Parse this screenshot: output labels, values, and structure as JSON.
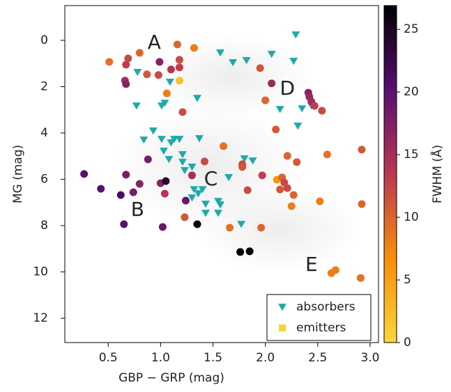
{
  "chart_data": {
    "type": "scatter",
    "xlabel": "GBP − GRP (mag)",
    "ylabel": "MG (mag)",
    "xlim": [
      0.086,
      3.08
    ],
    "ylim": [
      13.05,
      -1.5
    ],
    "xticks": [
      0.5,
      {
        "value": 1,
        "label": "1.0"
      },
      1.5,
      {
        "value": 2,
        "label": "2.0"
      },
      2.5,
      {
        "value": 3,
        "label": "3.0"
      }
    ],
    "yticks": [
      0,
      2,
      4,
      6,
      8,
      10,
      12
    ],
    "legend": "lower right",
    "colormap": "inferno_r",
    "colorbar": {
      "label": "FWHM (Å)",
      "clim": [
        0,
        26.9
      ],
      "ticks": [
        0,
        5,
        10,
        15,
        20,
        25
      ]
    },
    "annotations": [
      {
        "text": "A",
        "x": 0.94,
        "y": 0.12
      },
      {
        "text": "B",
        "x": 0.78,
        "y": 7.34
      },
      {
        "text": "C",
        "x": 1.48,
        "y": 6.02
      },
      {
        "text": "D",
        "x": 2.21,
        "y": 2.11
      },
      {
        "text": "E",
        "x": 2.44,
        "y": 9.71
      }
    ],
    "series": [
      {
        "name": "absorbers",
        "color": "#1fa9a9",
        "marker": "triangle",
        "x": [
          2.29,
          1.57,
          1.69,
          1.82,
          2.06,
          2.27,
          0.78,
          1.09,
          1.35,
          0.77,
          1.01,
          1.04,
          2.14,
          2.35,
          2.44,
          2.31,
          0.93,
          0.84,
          1.01,
          1.1,
          1.13,
          1.18,
          1.37,
          1.03,
          1.08,
          1.21,
          1.21,
          1.23,
          1.3,
          1.8,
          1.88,
          1.65,
          1.32,
          1.36,
          1.4,
          1.3,
          1.43,
          1.55,
          1.57,
          1.43,
          1.55,
          1.77
        ],
        "y": [
          -0.24,
          0.54,
          0.96,
          0.87,
          0.6,
          0.9,
          1.38,
          1.8,
          2.5,
          2.83,
          2.83,
          2.71,
          2.98,
          2.95,
          2.83,
          3.7,
          3.91,
          4.3,
          4.27,
          4.42,
          4.27,
          4.27,
          4.24,
          4.78,
          5.14,
          4.93,
          5.26,
          5.62,
          5.47,
          5.11,
          5.2,
          5.92,
          6.44,
          6.62,
          6.44,
          6.8,
          7.07,
          6.95,
          7.1,
          7.46,
          7.46,
          7.94
        ]
      },
      {
        "name": "emitters",
        "color": "#f5d33a",
        "marker": "circle",
        "x": [
          0.51,
          0.69,
          0.8,
          0.67,
          0.87,
          0.98,
          0.99,
          1.16,
          1.32,
          1.18,
          1.18,
          1.1,
          1.18,
          1.06,
          0.66,
          0.67,
          1.21,
          1.95,
          2.06,
          2.0,
          2.41,
          2.42,
          2.44,
          2.47,
          2.54,
          2.1,
          1.6,
          1.42,
          1.78,
          1.78,
          1.97,
          2.21,
          2.3,
          2.11,
          2.16,
          2.18,
          2.14,
          2.21,
          2.27,
          2.59,
          2.92,
          1.83,
          2.52,
          2.25,
          2.92,
          1.66,
          1.96,
          1.23,
          1.35,
          1.76,
          1.85,
          2.63,
          2.67,
          2.91,
          0.27,
          0.43,
          0.62,
          0.65,
          0.67,
          0.74,
          0.8,
          0.88,
          1.0,
          1.05,
          1.02,
          1.04,
          1.24,
          1.3
        ],
        "y": [
          0.93,
          0.78,
          0.54,
          1.05,
          1.47,
          1.5,
          0.93,
          0.18,
          0.33,
          0.84,
          1.17,
          1.26,
          1.74,
          2.29,
          1.74,
          1.89,
          3.1,
          1.2,
          1.86,
          2.59,
          2.26,
          2.44,
          2.65,
          2.83,
          3.04,
          3.85,
          4.57,
          5.23,
          5.35,
          5.47,
          5.83,
          4.99,
          5.26,
          6.02,
          5.92,
          6.14,
          6.44,
          6.38,
          6.68,
          4.93,
          4.72,
          6.47,
          6.95,
          7.16,
          7.07,
          8.09,
          8.09,
          7.64,
          7.94,
          9.14,
          9.11,
          10.05,
          9.92,
          10.26,
          5.77,
          6.41,
          6.68,
          7.94,
          5.8,
          6.56,
          6.2,
          5.14,
          6.17,
          6.08,
          8.06,
          6.62,
          6.92,
          5.83
        ],
        "fwhm": [
          9,
          12,
          10,
          13,
          11,
          12,
          17,
          10,
          8,
          12,
          13,
          14,
          2,
          8,
          15,
          17,
          12,
          11,
          16,
          10,
          17,
          16,
          15,
          13,
          12,
          11,
          9,
          12,
          12,
          11,
          13,
          10,
          11,
          6,
          10,
          12,
          11,
          12,
          10,
          9,
          11,
          12,
          8,
          8,
          10,
          9,
          10,
          11,
          27,
          27,
          27,
          8,
          8,
          9,
          20,
          20,
          21,
          20,
          18,
          18,
          17,
          18,
          17,
          24,
          19,
          14,
          19,
          15
        ]
      }
    ]
  }
}
